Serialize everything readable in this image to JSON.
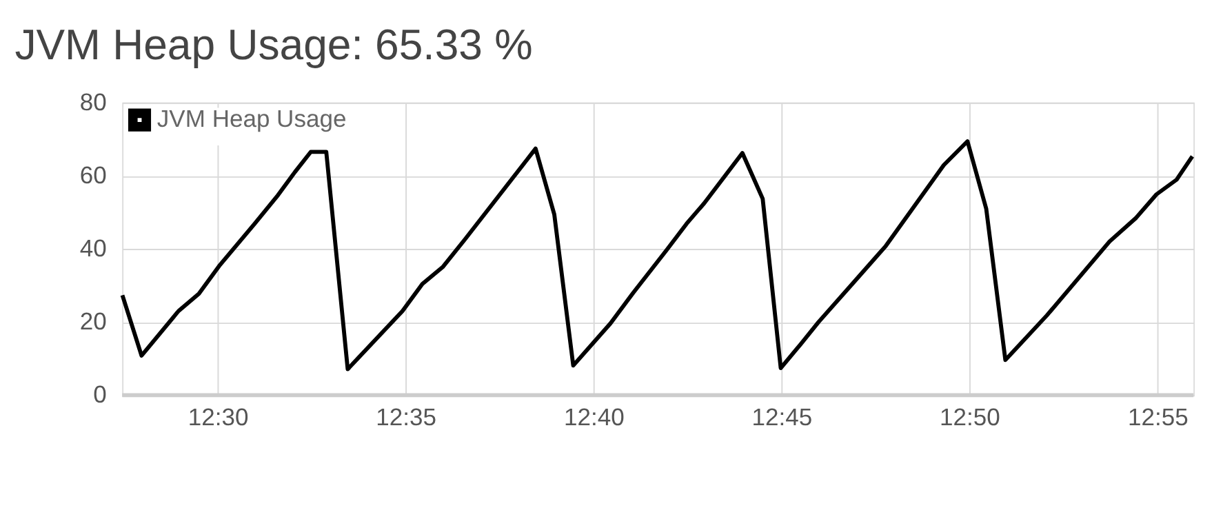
{
  "chart_data": {
    "type": "line",
    "title": "JVM Heap Usage: 65.33 %",
    "x": [
      12.4578,
      12.4663,
      12.4827,
      12.4917,
      12.5007,
      12.5165,
      12.5263,
      12.5343,
      12.5413,
      12.5482,
      12.5577,
      12.582,
      12.5908,
      12.5998,
      12.6097,
      12.641,
      12.6493,
      12.6577,
      12.6742,
      12.6842,
      12.699,
      12.708,
      12.7158,
      12.7327,
      12.7417,
      12.7497,
      12.7585,
      12.7665,
      12.7823,
      12.7963,
      12.822,
      12.8325,
      12.8408,
      12.8493,
      12.8677,
      12.8955,
      12.9073,
      12.9163,
      12.9252,
      12.9322
    ],
    "series": [
      {
        "name": "JVM Heap Usage",
        "color": "#000000",
        "values": [
          27.3,
          10.8,
          23,
          27.7,
          35.3,
          46.9,
          54.3,
          61,
          66.5,
          66.5,
          7.1,
          23,
          30.4,
          35,
          42.6,
          67.4,
          49.4,
          8.1,
          19.6,
          27.9,
          39.6,
          46.9,
          52.5,
          66.2,
          53.7,
          7.4,
          13.9,
          20,
          31,
          40.8,
          62.9,
          69.4,
          51,
          9.6,
          21.8,
          42,
          48.5,
          54.9,
          58.9,
          65.3
        ]
      }
    ],
    "xlim": [
      12.4577,
      12.9327
    ],
    "xticks": [
      {
        "value": 12.5,
        "label": "12:30"
      },
      {
        "value": 12.5833,
        "label": "12:35"
      },
      {
        "value": 12.6667,
        "label": "12:40"
      },
      {
        "value": 12.75,
        "label": "12:45"
      },
      {
        "value": 12.8333,
        "label": "12:50"
      },
      {
        "value": 12.9167,
        "label": "12:55"
      }
    ],
    "ylim": [
      0,
      80
    ],
    "yticks": [
      0,
      20,
      40,
      60,
      80
    ],
    "grid": true,
    "legend": "top left",
    "marker": "none",
    "line_style": "solid"
  }
}
